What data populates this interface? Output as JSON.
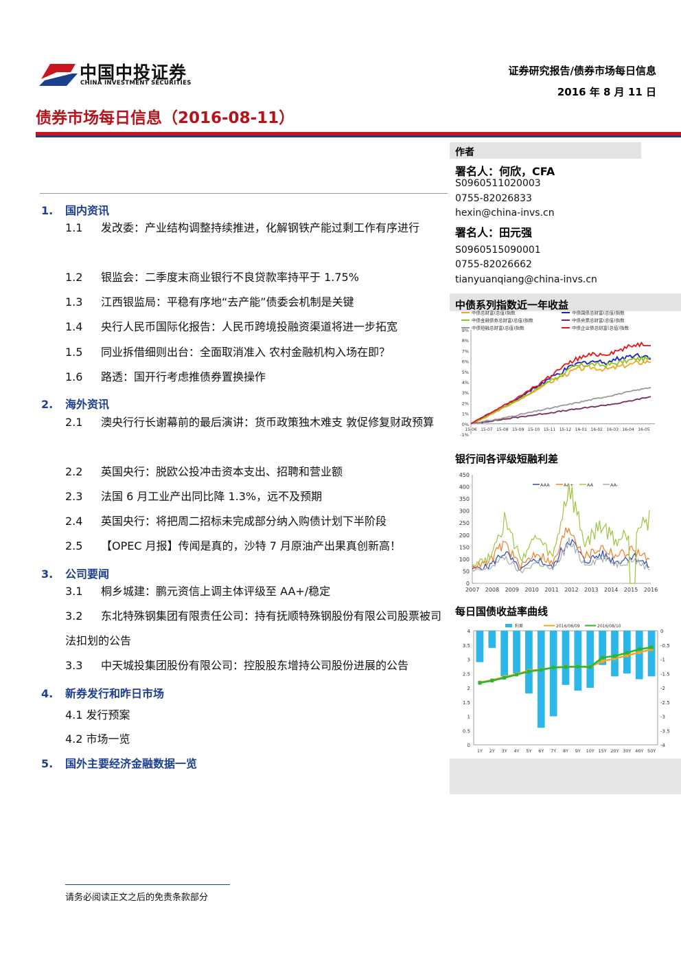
{
  "brand": {
    "name_cn": "中国中投证券",
    "name_en": "CHINA INVESTMENT SECURITIES",
    "colors": {
      "red": "#c8161d",
      "blue": "#1b3f8e"
    }
  },
  "header": {
    "category": "证券研究报告/债券市场每日信息",
    "date": "2016 年 8 月 11 日"
  },
  "title": "债券市场每日信息（2016-08-11）",
  "toc": {
    "s1": {
      "num": "1.",
      "title": "国内资讯",
      "items": [
        {
          "num": "1.1",
          "text": "发改委：产业结构调整持续推进，化解钢铁产能过剩工作有序进行"
        },
        {
          "num": "1.2",
          "text": "银监会：二季度末商业银行不良贷款率持平于 1.75%"
        },
        {
          "num": "1.3",
          "text": "江西银监局：平稳有序地“去产能”债委会机制是关键"
        },
        {
          "num": "1.4",
          "text": "央行人民币国际化报告：人民币跨境投融资渠道将进一步拓宽"
        },
        {
          "num": "1.5",
          "text": "同业拆借细则出台：全面取消准入 农村金融机构入场在即？"
        },
        {
          "num": "1.6",
          "text": "路透：国开行考虑推债券置换操作"
        }
      ]
    },
    "s2": {
      "num": "2.",
      "title": "海外资讯",
      "items": [
        {
          "num": "2.1",
          "text": "澳央行行长谢幕前的最后演讲：货币政策独木难支 敦促修复财政预算"
        },
        {
          "num": "2.2",
          "text": "英国央行：脱欧公投冲击资本支出、招聘和营业额"
        },
        {
          "num": "2.3",
          "text": "法国 6 月工业产出同比降 1.3%，远不及预期"
        },
        {
          "num": "2.4",
          "text": "英国央行：将把周二招标未完成部分纳入购债计划下半阶段"
        },
        {
          "num": "2.5",
          "text": "【OPEC 月报】传闻是真的，沙特 7 月原油产出果真创新高！"
        }
      ]
    },
    "s3": {
      "num": "3.",
      "title": "公司要闻",
      "items": [
        {
          "num": "3.1",
          "text": "桐乡城建：鹏元资信上调主体评级至 AA+/稳定"
        },
        {
          "num": "3.2",
          "text": "东北特殊钢集团有限责任公司：持有抚顺特殊钢股份有限公司股票被司法扣划的公告"
        },
        {
          "num": "3.3",
          "text": "中天城投集团股份有限公司：控股股东增持公司股份进展的公告"
        }
      ]
    },
    "s4": {
      "num": "4.",
      "title": "新券发行和昨日市场",
      "items": [
        {
          "text": "4.1 发行预案"
        },
        {
          "text": "4.2 市场一览"
        }
      ]
    },
    "s5": {
      "num": "5.",
      "title": "国外主要经济金融数据一览"
    }
  },
  "authors": {
    "section_label": "作者",
    "a1": {
      "name": "署名人：何欣，CFA",
      "cert": "S0960511020003",
      "phone": "0755-82026833",
      "email": "hexin@china-invs.cn"
    },
    "a2": {
      "name": "署名人：田元强",
      "cert": "S0960515090001",
      "phone": "0755-82026662",
      "email": "tianyuanqiang@china-invs.cn"
    }
  },
  "charts": {
    "c1_title": "中债系列指数近一年收益",
    "c2_title": "银行间各评级短融利差",
    "c3_title": "每日国债收益率曲线"
  },
  "chart_data": [
    {
      "type": "line",
      "title": "中债系列指数近一年收益",
      "y_ticks": [
        "-1%",
        "0%",
        "1%",
        "2%",
        "3%",
        "4%",
        "5%",
        "6%",
        "7%",
        "8%",
        "9%"
      ],
      "x_ticks": [
        "15-06",
        "15-07",
        "15-08",
        "15-09",
        "15-10",
        "15-11",
        "15-12",
        "16-01",
        "16-02",
        "16-03",
        "16-04",
        "16-05"
      ],
      "ylim": [
        -1,
        9
      ],
      "series": [
        {
          "name": "中债总财富(总值)指数",
          "color": "#f5a623",
          "values": [
            0,
            0.6,
            1.4,
            2.1,
            2.9,
            3.8,
            4.5,
            5.2,
            5.4,
            5.2,
            5.5,
            5.8,
            6.0
          ]
        },
        {
          "name": "中债国债总财富(总值)指数",
          "color": "#1620c8",
          "values": [
            0,
            0.8,
            1.5,
            2.3,
            3.2,
            4.1,
            4.9,
            5.7,
            6.0,
            5.9,
            6.3,
            6.6,
            6.4
          ]
        },
        {
          "name": "中债金融债券总财富(总值)指数",
          "color": "#8fc31f",
          "values": [
            0,
            0.7,
            1.5,
            2.2,
            3.0,
            3.9,
            4.7,
            5.5,
            5.7,
            5.6,
            5.9,
            6.2,
            6.2
          ]
        },
        {
          "name": "中债央票总财富(总值)指数",
          "color": "#7a2a5a",
          "values": [
            0,
            0.2,
            0.4,
            0.6,
            0.8,
            1.0,
            1.2,
            1.4,
            1.6,
            1.8,
            2.0,
            2.3,
            2.6
          ]
        },
        {
          "name": "中债短融总财富(总值)指数",
          "color": "#9a9a9a",
          "values": [
            0,
            0.25,
            0.5,
            0.8,
            1.1,
            1.4,
            1.7,
            2.0,
            2.3,
            2.6,
            2.9,
            3.2,
            3.5
          ]
        },
        {
          "name": "中债企业债总财富(总值)指数",
          "color": "#e8141a",
          "values": [
            0,
            0.8,
            1.6,
            2.4,
            3.3,
            4.3,
            5.3,
            6.2,
            6.6,
            6.7,
            7.1,
            7.6,
            7.7
          ]
        }
      ]
    },
    {
      "type": "line",
      "title": "银行间各评级短融利差",
      "y_ticks": [
        "0",
        "50",
        "100",
        "150",
        "200",
        "250",
        "300",
        "350",
        "400",
        "450"
      ],
      "x_ticks": [
        "2007",
        "2008",
        "2009",
        "2010",
        "2011",
        "2012",
        "2013",
        "2014",
        "2015",
        "2016"
      ],
      "ylim": [
        0,
        450
      ],
      "series": [
        {
          "name": "AAA",
          "color": "#2a4aa8",
          "values": [
            60,
            70,
            130,
            55,
            100,
            65,
            190,
            90,
            120,
            90,
            115,
            70
          ]
        },
        {
          "name": "AA+",
          "color": "#f07d23",
          "values": [
            70,
            85,
            170,
            70,
            130,
            80,
            240,
            110,
            150,
            115,
            140,
            95
          ]
        },
        {
          "name": "AA",
          "color": "#9bc53d",
          "values": [
            80,
            105,
            260,
            100,
            190,
            105,
            400,
            160,
            240,
            170,
            230,
            265
          ]
        },
        {
          "name": "AA-",
          "color": "#aaaaaa",
          "values": [
            50,
            60,
            110,
            45,
            90,
            55,
            170,
            80,
            105,
            80,
            100,
            60
          ]
        }
      ]
    },
    {
      "type": "bar",
      "title": "每日国债收益率曲线",
      "categories": [
        "1Y",
        "2Y",
        "3Y",
        "4Y",
        "5Y",
        "6Y",
        "7Y",
        "8Y",
        "9Y",
        "10Y",
        "15Y",
        "20Y",
        "30Y",
        "40Y",
        "50Y"
      ],
      "y_ticks": [
        "0",
        "0.5",
        "1",
        "1.5",
        "2",
        "2.5",
        "3",
        "3.5",
        "4"
      ],
      "y2_ticks": [
        "0",
        "-0.5",
        "-1",
        "-1.5",
        "-2",
        "-2.5",
        "-3",
        "-3.5",
        "-4"
      ],
      "series": [
        {
          "name": "利差",
          "color": "#2cb7e8",
          "values": [
            -1.1,
            -0.6,
            -1.6,
            -1.5,
            -2.2,
            -3.4,
            -3.0,
            -1.9,
            -2.1,
            -2.0,
            -1.2,
            -1.6,
            -1.5,
            -1.7,
            -1.6
          ]
        },
        {
          "name": "2016/08/09",
          "color": "#f5a623",
          "values": [
            2.19,
            2.27,
            2.38,
            2.48,
            2.6,
            2.64,
            2.71,
            2.74,
            2.74,
            2.74,
            2.93,
            3.03,
            3.13,
            3.24,
            3.35
          ]
        },
        {
          "name": "2016/08/10",
          "color": "#2db52d",
          "values": [
            2.17,
            2.25,
            2.35,
            2.46,
            2.57,
            2.63,
            2.71,
            2.73,
            2.74,
            2.73,
            3.06,
            3.11,
            3.23,
            3.35,
            3.42
          ]
        }
      ]
    }
  ],
  "footer": "请务必阅读正文之后的免责条款部分"
}
